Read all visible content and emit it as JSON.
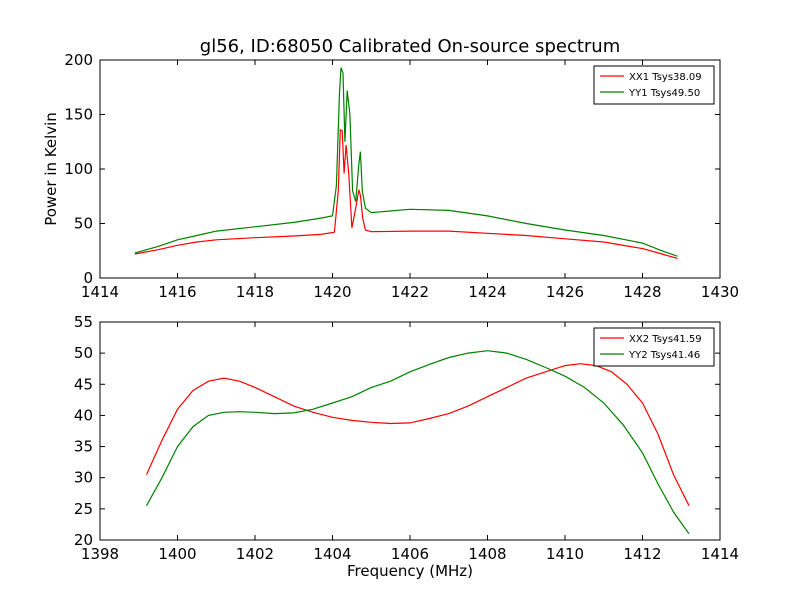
{
  "figure": {
    "title": "gl56, ID:68050 Calibrated On-source spectrum"
  },
  "chart_data": [
    {
      "type": "line",
      "ylabel": "Power in Kelvin",
      "xlabel": "",
      "xlim": [
        1414,
        1430
      ],
      "ylim": [
        0,
        200
      ],
      "xticks": [
        1414,
        1416,
        1418,
        1420,
        1422,
        1424,
        1426,
        1428,
        1430
      ],
      "yticks": [
        0,
        50,
        100,
        150,
        200
      ],
      "legend_position": "top-right",
      "grid": false,
      "series": [
        {
          "name": "XX1 Tsys38.09",
          "color": "#ff0000",
          "points": [
            [
              1414.9,
              22
            ],
            [
              1415.5,
              26
            ],
            [
              1416,
              30
            ],
            [
              1416.5,
              33
            ],
            [
              1417,
              35
            ],
            [
              1418,
              37
            ],
            [
              1419,
              38.5
            ],
            [
              1419.7,
              40
            ],
            [
              1420.05,
              42
            ],
            [
              1420.15,
              80
            ],
            [
              1420.2,
              136
            ],
            [
              1420.25,
              135
            ],
            [
              1420.3,
              96
            ],
            [
              1420.35,
              122
            ],
            [
              1420.42,
              95
            ],
            [
              1420.5,
              46
            ],
            [
              1420.6,
              64
            ],
            [
              1420.68,
              81
            ],
            [
              1420.72,
              76
            ],
            [
              1420.78,
              55
            ],
            [
              1420.85,
              44
            ],
            [
              1421,
              42.5
            ],
            [
              1422,
              43
            ],
            [
              1423,
              43
            ],
            [
              1424,
              41
            ],
            [
              1425,
              39
            ],
            [
              1426,
              36
            ],
            [
              1427,
              33
            ],
            [
              1428,
              27
            ],
            [
              1428.5,
              22
            ],
            [
              1428.9,
              18
            ]
          ]
        },
        {
          "name": "YY1 Tsys49.50",
          "color": "#008000",
          "points": [
            [
              1414.9,
              23
            ],
            [
              1415.5,
              29
            ],
            [
              1416,
              35
            ],
            [
              1416.5,
              39
            ],
            [
              1417,
              43
            ],
            [
              1418,
              47
            ],
            [
              1419,
              51
            ],
            [
              1419.7,
              55
            ],
            [
              1420.0,
              57
            ],
            [
              1420.1,
              85
            ],
            [
              1420.18,
              170
            ],
            [
              1420.22,
              193
            ],
            [
              1420.27,
              188
            ],
            [
              1420.32,
              125
            ],
            [
              1420.38,
              172
            ],
            [
              1420.45,
              150
            ],
            [
              1420.52,
              80
            ],
            [
              1420.6,
              70
            ],
            [
              1420.68,
              105
            ],
            [
              1420.72,
              116
            ],
            [
              1420.77,
              80
            ],
            [
              1420.85,
              64
            ],
            [
              1421,
              60
            ],
            [
              1422,
              63
            ],
            [
              1423,
              62
            ],
            [
              1424,
              57
            ],
            [
              1425,
              50
            ],
            [
              1426,
              44
            ],
            [
              1427,
              39
            ],
            [
              1428,
              32
            ],
            [
              1428.5,
              25
            ],
            [
              1428.9,
              20
            ]
          ]
        }
      ]
    },
    {
      "type": "line",
      "xlabel": "Frequency (MHz)",
      "ylabel": "",
      "xlim": [
        1398,
        1414
      ],
      "ylim": [
        20,
        55
      ],
      "xticks": [
        1398,
        1400,
        1402,
        1404,
        1406,
        1408,
        1410,
        1412,
        1414
      ],
      "yticks": [
        20,
        25,
        30,
        35,
        40,
        45,
        50,
        55
      ],
      "legend_position": "top-right",
      "grid": false,
      "series": [
        {
          "name": "XX2 Tsys41.59",
          "color": "#ff0000",
          "points": [
            [
              1399.2,
              30.5
            ],
            [
              1399.6,
              36
            ],
            [
              1400,
              41
            ],
            [
              1400.4,
              44
            ],
            [
              1400.8,
              45.5
            ],
            [
              1401.2,
              46
            ],
            [
              1401.6,
              45.5
            ],
            [
              1402,
              44.5
            ],
            [
              1402.5,
              43
            ],
            [
              1403,
              41.5
            ],
            [
              1403.5,
              40.5
            ],
            [
              1404,
              39.7
            ],
            [
              1404.5,
              39.2
            ],
            [
              1405,
              38.9
            ],
            [
              1405.5,
              38.7
            ],
            [
              1406,
              38.8
            ],
            [
              1406.5,
              39.5
            ],
            [
              1407,
              40.3
            ],
            [
              1407.5,
              41.5
            ],
            [
              1408,
              43
            ],
            [
              1408.5,
              44.5
            ],
            [
              1409,
              46
            ],
            [
              1409.5,
              47
            ],
            [
              1410,
              48
            ],
            [
              1410.4,
              48.3
            ],
            [
              1410.8,
              48
            ],
            [
              1411.2,
              47
            ],
            [
              1411.6,
              45
            ],
            [
              1412,
              42
            ],
            [
              1412.4,
              37
            ],
            [
              1412.8,
              30.5
            ],
            [
              1413.2,
              25.5
            ]
          ]
        },
        {
          "name": "YY2 Tsys41.46",
          "color": "#008000",
          "points": [
            [
              1399.2,
              25.5
            ],
            [
              1399.6,
              30
            ],
            [
              1400,
              35
            ],
            [
              1400.4,
              38.2
            ],
            [
              1400.8,
              40
            ],
            [
              1401.2,
              40.5
            ],
            [
              1401.6,
              40.6
            ],
            [
              1402,
              40.5
            ],
            [
              1402.5,
              40.3
            ],
            [
              1403,
              40.4
            ],
            [
              1403.5,
              41
            ],
            [
              1404,
              42
            ],
            [
              1404.5,
              43
            ],
            [
              1405,
              44.5
            ],
            [
              1405.5,
              45.5
            ],
            [
              1406,
              47
            ],
            [
              1406.5,
              48.2
            ],
            [
              1407,
              49.3
            ],
            [
              1407.5,
              50
            ],
            [
              1408,
              50.4
            ],
            [
              1408.5,
              50
            ],
            [
              1409,
              49
            ],
            [
              1409.5,
              47.7
            ],
            [
              1410,
              46.3
            ],
            [
              1410.5,
              44.5
            ],
            [
              1411,
              42
            ],
            [
              1411.5,
              38.5
            ],
            [
              1412,
              34
            ],
            [
              1412.4,
              29
            ],
            [
              1412.8,
              24.5
            ],
            [
              1413.2,
              21
            ]
          ]
        }
      ]
    }
  ]
}
